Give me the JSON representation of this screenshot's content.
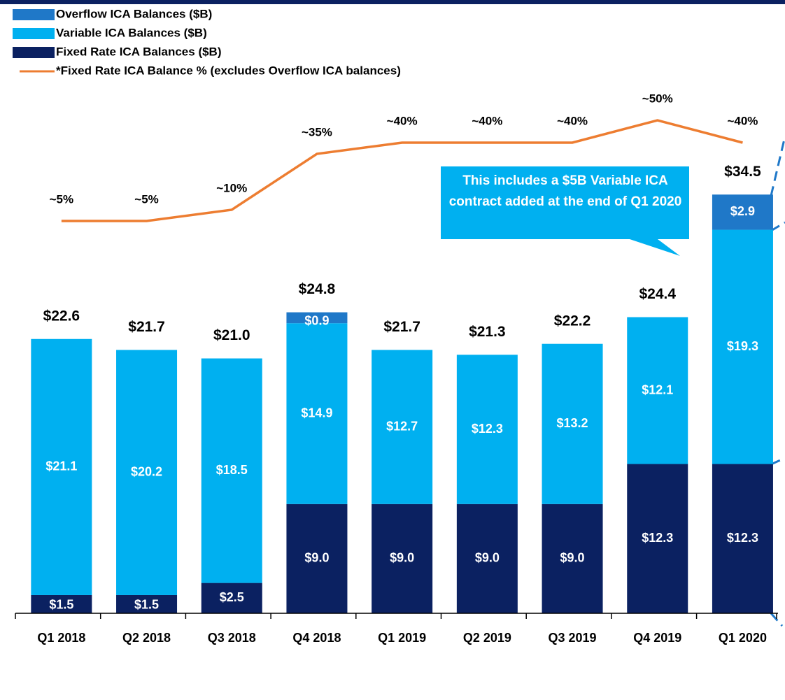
{
  "chart_data": {
    "type": "stacked_bar_line",
    "categories": [
      "Q1 2018",
      "Q2 2018",
      "Q3 2018",
      "Q4 2018",
      "Q1 2019",
      "Q2 2019",
      "Q3 2019",
      "Q4 2019",
      "Q1 2020"
    ],
    "ylim": [
      0,
      45
    ],
    "y2lim": [
      0,
      100
    ],
    "series": [
      {
        "name": "Fixed Rate ICA Balances ($B)",
        "color": "#0b2161",
        "values": [
          1.5,
          1.5,
          2.5,
          9.0,
          9.0,
          9.0,
          9.0,
          12.3,
          12.3
        ],
        "value_labels": [
          "$1.5",
          "$1.5",
          "$2.5",
          "$9.0",
          "$9.0",
          "$9.0",
          "$9.0",
          "$12.3",
          "$12.3"
        ]
      },
      {
        "name": "Variable ICA Balances ($B)",
        "color": "#00b0f0",
        "values": [
          21.1,
          20.2,
          18.5,
          14.9,
          12.7,
          12.3,
          13.2,
          12.1,
          19.3
        ],
        "value_labels": [
          "$21.1",
          "$20.2",
          "$18.5",
          "$14.9",
          "$12.7",
          "$12.3",
          "$13.2",
          "$12.1",
          "$19.3"
        ]
      },
      {
        "name": "Overflow ICA Balances ($B)",
        "color": "#1f78c8",
        "values": [
          null,
          null,
          null,
          0.9,
          null,
          null,
          null,
          null,
          2.9
        ],
        "value_labels": [
          null,
          null,
          null,
          "$0.9",
          null,
          null,
          null,
          null,
          "$2.9"
        ]
      },
      {
        "name": "*Fixed Rate ICA Balance % (excludes Overflow ICA balances)",
        "color": "#ed7d31",
        "type": "line",
        "axis": "y2",
        "values": [
          5,
          5,
          10,
          35,
          40,
          40,
          40,
          50,
          40
        ],
        "value_labels": [
          "~5%",
          "~5%",
          "~10%",
          "~35%",
          "~40%",
          "~40%",
          "~40%",
          "~50%",
          "~40%"
        ]
      }
    ],
    "totals": {
      "values": [
        22.6,
        21.7,
        21.0,
        24.8,
        21.7,
        21.3,
        22.2,
        24.4,
        34.5
      ],
      "value_labels": [
        "$22.6",
        "$21.7",
        "$21.0",
        "$24.8",
        "$21.7",
        "$21.3",
        "$22.2",
        "$24.4",
        "$34.5"
      ]
    },
    "annotation": "This includes a $5B Variable ICA contract added at the end of Q1 2020"
  }
}
